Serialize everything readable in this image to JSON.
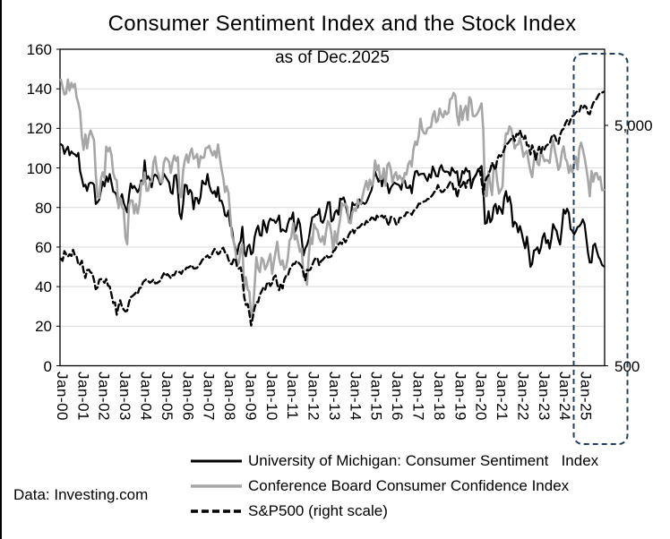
{
  "title": "Consumer Sentiment Index and the Stock Index",
  "subtitle": "as of Dec.2025",
  "source_note": "Data: Investing.com",
  "colors": {
    "series_black": "#000000",
    "series_gray": "#a6a6a6",
    "gridline": "#d9d9d9",
    "plot_border": "#000000",
    "highlight_border": "#24405f",
    "text": "#000000"
  },
  "legend": [
    {
      "label": "University of Michigan: Consumer Sentiment   Index",
      "style": "solid-black"
    },
    {
      "label": "Conference Board Consumer Confidence Index",
      "style": "solid-gray"
    },
    {
      "label": "S&P500 (right scale)",
      "style": "dashed-black"
    }
  ],
  "chart_data": {
    "type": "line",
    "title": "Consumer Sentiment Index and the Stock Index",
    "subtitle": "as of Dec.2025",
    "x_interval": "monthly",
    "x_start": "Jan-2000",
    "x_end": "Dec-2025",
    "n_points": 312,
    "months_per_tick": 12,
    "x_tick_labels": [
      "Jan-00",
      "Jan-01",
      "Jan-02",
      "Jan-03",
      "Jan-04",
      "Jan-05",
      "Jan-06",
      "Jan-07",
      "Jan-08",
      "Jan-09",
      "Jan-10",
      "Jan-11",
      "Jan-12",
      "Jan-13",
      "Jan-14",
      "Jan-15",
      "Jan-16",
      "Jan-17",
      "Jan-18",
      "Jan-19",
      "Jan-20",
      "Jan-21",
      "Jan-22",
      "Jan-23",
      "Jan-24",
      "Jan-25"
    ],
    "left_axis": {
      "min": 0,
      "max": 160,
      "ticks": [
        0,
        20,
        40,
        60,
        80,
        100,
        120,
        140,
        160
      ],
      "grid": true
    },
    "right_axis": {
      "scale": "log",
      "tick_labels": [
        "5,000",
        "500"
      ],
      "tick_values": [
        5000,
        500
      ]
    },
    "highlight_region": {
      "from": "Jan-25",
      "to": "Dec-25"
    },
    "series": [
      {
        "name": "University of Michigan: Consumer Sentiment Index",
        "axis": "left",
        "style": "solid-black",
        "values": [
          112.0,
          111.3,
          107.1,
          109.2,
          110.7,
          106.4,
          108.3,
          107.3,
          106.8,
          105.8,
          107.6,
          98.4,
          94.7,
          90.6,
          91.5,
          88.4,
          92.0,
          92.6,
          92.4,
          91.5,
          81.8,
          82.7,
          83.9,
          88.8,
          93.0,
          90.7,
          95.7,
          93.0,
          96.9,
          92.4,
          88.1,
          87.6,
          86.1,
          80.6,
          84.2,
          86.7,
          82.4,
          79.9,
          77.6,
          86.0,
          92.1,
          89.7,
          90.9,
          89.3,
          87.7,
          89.6,
          93.7,
          92.6,
          103.8,
          94.4,
          95.8,
          94.2,
          90.2,
          95.6,
          96.7,
          95.9,
          94.2,
          91.7,
          92.8,
          97.1,
          95.5,
          94.1,
          92.6,
          87.7,
          86.9,
          96.0,
          96.5,
          89.1,
          76.9,
          74.2,
          81.6,
          91.5,
          91.2,
          86.7,
          88.9,
          87.4,
          79.1,
          84.9,
          84.7,
          82.0,
          85.4,
          93.6,
          92.1,
          91.7,
          96.9,
          91.3,
          88.4,
          87.1,
          88.3,
          85.3,
          90.4,
          83.4,
          83.4,
          80.9,
          76.1,
          75.5,
          78.4,
          70.8,
          69.5,
          62.6,
          59.8,
          56.4,
          61.2,
          63.0,
          70.3,
          57.6,
          55.3,
          60.1,
          61.2,
          56.3,
          57.3,
          65.1,
          68.7,
          70.8,
          66.0,
          65.7,
          73.5,
          70.6,
          67.4,
          72.5,
          74.4,
          73.6,
          73.6,
          72.2,
          73.6,
          76.0,
          67.8,
          68.9,
          68.2,
          67.7,
          71.6,
          74.5,
          74.2,
          77.5,
          67.5,
          69.8,
          74.3,
          71.5,
          63.7,
          55.8,
          59.4,
          60.9,
          64.1,
          69.9,
          75.0,
          75.3,
          76.2,
          76.4,
          79.3,
          73.2,
          72.3,
          74.3,
          78.3,
          82.6,
          82.7,
          72.9,
          73.8,
          77.6,
          78.6,
          76.4,
          84.5,
          84.1,
          85.1,
          82.1,
          77.5,
          73.2,
          75.1,
          82.5,
          81.2,
          81.6,
          80.0,
          84.1,
          81.9,
          82.5,
          81.8,
          82.5,
          84.6,
          86.9,
          88.8,
          93.6,
          98.1,
          95.4,
          93.0,
          95.9,
          90.7,
          96.1,
          93.1,
          91.9,
          87.2,
          90.0,
          91.3,
          92.6,
          92.0,
          91.7,
          91.0,
          89.0,
          94.7,
          93.5,
          90.0,
          89.8,
          91.2,
          87.2,
          93.8,
          98.2,
          98.5,
          96.3,
          96.9,
          97.0,
          97.1,
          95.0,
          93.4,
          96.8,
          95.1,
          100.7,
          98.5,
          95.9,
          95.7,
          99.7,
          101.4,
          98.8,
          98.0,
          98.2,
          97.9,
          96.2,
          100.1,
          98.6,
          97.5,
          98.3,
          91.2,
          93.8,
          98.4,
          97.2,
          100.0,
          98.2,
          98.4,
          89.8,
          93.2,
          95.5,
          96.8,
          99.3,
          99.8,
          101.0,
          89.1,
          71.8,
          72.3,
          78.1,
          72.5,
          74.1,
          80.4,
          81.8,
          76.9,
          80.7,
          79.0,
          76.8,
          84.9,
          88.3,
          82.9,
          85.5,
          81.2,
          70.3,
          72.8,
          71.7,
          67.4,
          70.6,
          67.2,
          62.8,
          59.4,
          65.2,
          58.4,
          50.0,
          51.5,
          58.2,
          58.6,
          59.9,
          56.8,
          59.7,
          64.9,
          67.0,
          62.0,
          63.5,
          59.2,
          64.4,
          71.6,
          69.5,
          68.1,
          63.8,
          61.3,
          69.7,
          79.0,
          76.9,
          79.4,
          77.2,
          69.1,
          68.2,
          66.4,
          67.9,
          70.1,
          70.5,
          71.8,
          74.0,
          71.7,
          64.7,
          57.0,
          52.2,
          52.2,
          60.7,
          61.7,
          58.2,
          55.1,
          53.6,
          51.0,
          50.3
        ]
      },
      {
        "name": "Conference Board Consumer Confidence Index",
        "axis": "left",
        "style": "solid-gray",
        "values": [
          144.7,
          140.8,
          137.1,
          137.7,
          144.7,
          139.2,
          143.0,
          140.8,
          142.5,
          135.8,
          132.6,
          128.6,
          115.7,
          109.2,
          116.9,
          109.9,
          116.1,
          118.9,
          116.3,
          114.0,
          97.0,
          85.3,
          84.9,
          94.6,
          97.8,
          95.0,
          110.7,
          108.5,
          110.3,
          106.3,
          97.4,
          94.5,
          93.7,
          79.6,
          84.9,
          80.3,
          78.8,
          64.8,
          61.4,
          81.0,
          83.6,
          83.5,
          77.0,
          81.7,
          77.0,
          81.7,
          92.5,
          91.7,
          97.7,
          88.5,
          88.5,
          93.0,
          93.1,
          102.8,
          105.7,
          98.7,
          96.7,
          92.9,
          92.6,
          102.7,
          105.1,
          104.4,
          103.0,
          97.5,
          103.1,
          106.2,
          103.6,
          105.5,
          87.5,
          85.2,
          98.3,
          103.8,
          106.8,
          102.7,
          107.5,
          109.8,
          104.7,
          105.4,
          107.0,
          100.2,
          105.9,
          105.1,
          105.3,
          110.0,
          110.2,
          111.2,
          108.2,
          106.3,
          108.5,
          105.3,
          111.9,
          105.6,
          99.5,
          95.2,
          87.8,
          90.6,
          87.3,
          76.4,
          65.9,
          62.8,
          58.1,
          51.0,
          51.9,
          58.5,
          61.4,
          38.8,
          44.7,
          38.6,
          37.4,
          25.3,
          26.9,
          40.8,
          54.8,
          49.3,
          47.4,
          54.5,
          53.4,
          48.7,
          50.6,
          53.6,
          56.5,
          46.4,
          52.3,
          57.7,
          62.7,
          54.3,
          51.0,
          53.2,
          48.6,
          49.9,
          54.3,
          63.4,
          64.8,
          72.0,
          63.8,
          66.0,
          61.7,
          57.6,
          59.2,
          45.2,
          46.4,
          40.9,
          55.2,
          64.8,
          61.5,
          71.6,
          69.5,
          68.7,
          64.4,
          62.7,
          65.4,
          61.3,
          68.4,
          73.1,
          71.5,
          66.7,
          58.4,
          68.0,
          61.9,
          69.0,
          74.3,
          82.1,
          81.0,
          81.8,
          80.2,
          72.4,
          72.0,
          77.5,
          79.4,
          78.3,
          83.9,
          81.7,
          82.2,
          86.4,
          90.3,
          93.4,
          89.0,
          94.1,
          91.0,
          93.1,
          103.8,
          98.8,
          101.4,
          94.3,
          94.6,
          99.8,
          91.0,
          101.3,
          102.6,
          99.1,
          92.6,
          96.3,
          97.8,
          94.0,
          96.1,
          94.7,
          92.4,
          97.4,
          96.7,
          101.8,
          103.5,
          100.8,
          109.4,
          113.3,
          111.6,
          116.1,
          124.9,
          119.4,
          117.6,
          117.3,
          120.0,
          120.4,
          120.6,
          126.2,
          128.6,
          123.1,
          124.3,
          130.0,
          127.0,
          125.6,
          128.8,
          127.1,
          127.9,
          134.7,
          135.3,
          137.9,
          136.4,
          126.6,
          121.7,
          131.4,
          124.2,
          129.2,
          131.3,
          124.3,
          135.8,
          134.2,
          126.3,
          126.1,
          126.8,
          128.2,
          130.4,
          132.6,
          118.8,
          85.7,
          85.9,
          98.3,
          91.7,
          86.3,
          101.3,
          101.4,
          92.9,
          87.1,
          88.9,
          90.4,
          109.0,
          117.5,
          117.2,
          121.0,
          119.8,
          115.2,
          109.8,
          111.6,
          111.9,
          115.2,
          111.1,
          105.7,
          107.6,
          108.6,
          103.2,
          98.4,
          95.3,
          103.6,
          107.8,
          102.2,
          101.4,
          109.0,
          106.0,
          103.4,
          104.0,
          103.7,
          102.5,
          110.1,
          114.0,
          108.7,
          104.3,
          99.1,
          101.0,
          108.0,
          110.9,
          104.8,
          103.1,
          97.5,
          101.3,
          97.8,
          101.9,
          105.6,
          99.2,
          109.6,
          112.8,
          109.5,
          105.3,
          100.1,
          93.9,
          85.7,
          98.4,
          93.0,
          97.2,
          97.4,
          94.2,
          95.5,
          88.7,
          88.9
        ]
      },
      {
        "name": "S&P500",
        "axis": "right",
        "style": "dashed-black",
        "values": [
          1394,
          1366,
          1499,
          1452,
          1421,
          1455,
          1431,
          1518,
          1437,
          1429,
          1315,
          1320,
          1366,
          1240,
          1160,
          1249,
          1256,
          1224,
          1211,
          1134,
          1041,
          1060,
          1139,
          1148,
          1130,
          1107,
          1147,
          1077,
          1067,
          990,
          912,
          916,
          815,
          886,
          936,
          880,
          856,
          841,
          848,
          917,
          964,
          975,
          990,
          1008,
          996,
          1051,
          1058,
          1112,
          1131,
          1145,
          1126,
          1107,
          1121,
          1141,
          1102,
          1104,
          1115,
          1130,
          1174,
          1212,
          1181,
          1204,
          1181,
          1157,
          1192,
          1191,
          1234,
          1220,
          1229,
          1207,
          1249,
          1248,
          1280,
          1281,
          1295,
          1311,
          1270,
          1270,
          1277,
          1304,
          1336,
          1378,
          1401,
          1418,
          1438,
          1407,
          1421,
          1482,
          1531,
          1503,
          1455,
          1474,
          1527,
          1549,
          1481,
          1468,
          1379,
          1331,
          1323,
          1386,
          1400,
          1280,
          1267,
          1283,
          1166,
          969,
          896,
          903,
          826,
          735,
          798,
          873,
          919,
          919,
          987,
          1021,
          1057,
          1036,
          1096,
          1115,
          1074,
          1104,
          1169,
          1187,
          1089,
          1031,
          1102,
          1049,
          1141,
          1183,
          1181,
          1258,
          1286,
          1327,
          1326,
          1364,
          1345,
          1321,
          1292,
          1219,
          1131,
          1253,
          1247,
          1258,
          1312,
          1366,
          1408,
          1398,
          1310,
          1362,
          1379,
          1407,
          1441,
          1412,
          1416,
          1426,
          1498,
          1515,
          1569,
          1598,
          1631,
          1606,
          1686,
          1633,
          1682,
          1757,
          1806,
          1848,
          1783,
          1859,
          1872,
          1884,
          1924,
          1960,
          1931,
          2003,
          1972,
          2018,
          2068,
          2059,
          1995,
          2105,
          2068,
          2086,
          2107,
          2063,
          2104,
          1972,
          1920,
          2079,
          2080,
          2044,
          1940,
          1932,
          2060,
          2065,
          2097,
          2099,
          2174,
          2171,
          2168,
          2126,
          2199,
          2239,
          2279,
          2364,
          2363,
          2384,
          2412,
          2423,
          2470,
          2472,
          2519,
          2575,
          2648,
          2674,
          2824,
          2714,
          2641,
          2648,
          2705,
          2718,
          2816,
          2902,
          2914,
          2712,
          2760,
          2507,
          2704,
          2784,
          2834,
          2946,
          2752,
          2942,
          2980,
          2926,
          2977,
          3038,
          3141,
          3231,
          3226,
          2954,
          2585,
          2912,
          3044,
          3100,
          3271,
          3500,
          3363,
          3270,
          3622,
          3756,
          3714,
          3811,
          3973,
          4181,
          4204,
          4298,
          4395,
          4523,
          4308,
          4605,
          4567,
          4766,
          4516,
          4374,
          4530,
          4132,
          4132,
          3785,
          4130,
          3955,
          3586,
          3872,
          4080,
          3840,
          4077,
          3970,
          4109,
          4169,
          4180,
          4450,
          4589,
          4508,
          4288,
          4194,
          4568,
          4770,
          4846,
          5096,
          5254,
          5036,
          5278,
          5460,
          5522,
          5648,
          5762,
          5705,
          6032,
          5882,
          6041,
          5955,
          5612,
          5569,
          5912,
          6205,
          6339,
          6460,
          6688,
          6840,
          6849,
          6900
        ]
      }
    ]
  }
}
